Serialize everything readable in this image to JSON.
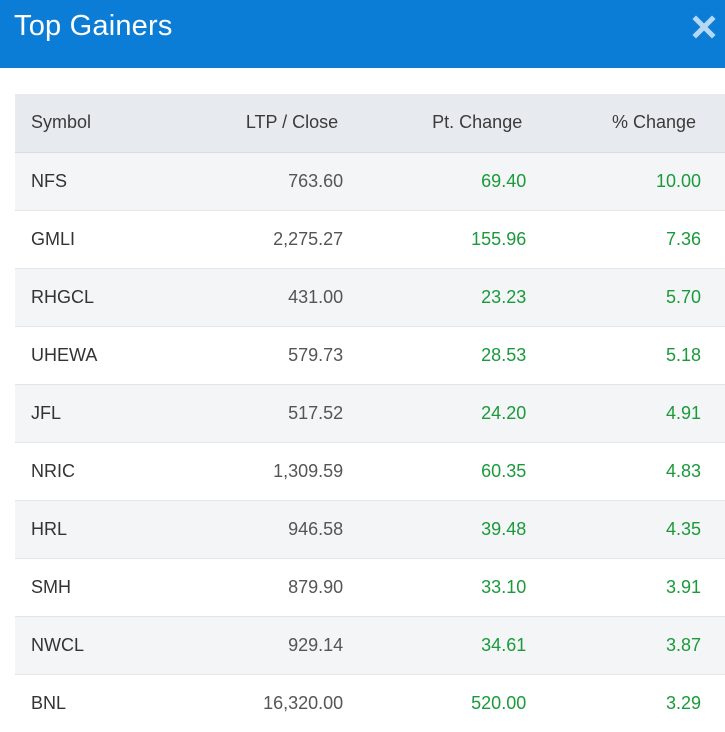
{
  "header": {
    "title": "Top Gainers",
    "close_icon": "close-icon",
    "background": "#0b7dd6"
  },
  "table": {
    "columns": [
      "Symbol",
      "LTP / Close",
      "Pt. Change",
      "% Change"
    ],
    "gain_color": "#1a9a3a",
    "rows": [
      {
        "symbol": "NFS",
        "ltp": "763.60",
        "pt_change": "69.40",
        "pct_change": "10.00"
      },
      {
        "symbol": "GMLI",
        "ltp": "2,275.27",
        "pt_change": "155.96",
        "pct_change": "7.36"
      },
      {
        "symbol": "RHGCL",
        "ltp": "431.00",
        "pt_change": "23.23",
        "pct_change": "5.70"
      },
      {
        "symbol": "UHEWA",
        "ltp": "579.73",
        "pt_change": "28.53",
        "pct_change": "5.18"
      },
      {
        "symbol": "JFL",
        "ltp": "517.52",
        "pt_change": "24.20",
        "pct_change": "4.91"
      },
      {
        "symbol": "NRIC",
        "ltp": "1,309.59",
        "pt_change": "60.35",
        "pct_change": "4.83"
      },
      {
        "symbol": "HRL",
        "ltp": "946.58",
        "pt_change": "39.48",
        "pct_change": "4.35"
      },
      {
        "symbol": "SMH",
        "ltp": "879.90",
        "pt_change": "33.10",
        "pct_change": "3.91"
      },
      {
        "symbol": "NWCL",
        "ltp": "929.14",
        "pt_change": "34.61",
        "pct_change": "3.87"
      },
      {
        "symbol": "BNL",
        "ltp": "16,320.00",
        "pt_change": "520.00",
        "pct_change": "3.29"
      }
    ]
  }
}
